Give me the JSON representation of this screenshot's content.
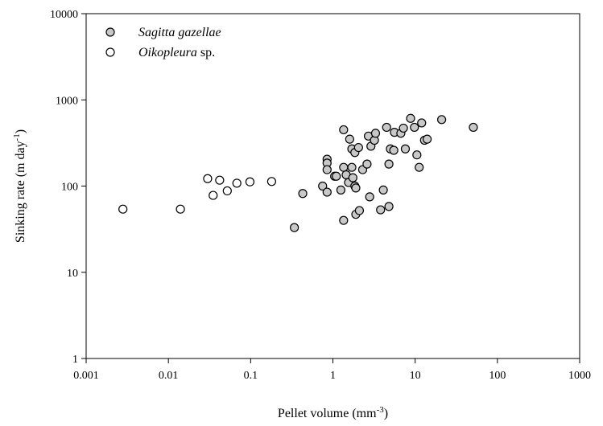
{
  "chart_data": {
    "type": "scatter",
    "title": "",
    "xlabel": "Pellet volume (mm",
    "xlabel_sup": "-3",
    "xlabel_end": ")",
    "ylabel": "Sinking rate (m day",
    "ylabel_sup": "-1",
    "ylabel_end": ")",
    "xscale": "log",
    "yscale": "log",
    "xlim": [
      0.001,
      1000
    ],
    "ylim": [
      1,
      10000
    ],
    "x_ticks": [
      0.001,
      0.01,
      0.1,
      1,
      10,
      100,
      1000
    ],
    "x_tick_labels": [
      "0.001",
      "0.01",
      "0.1",
      "1",
      "10",
      "100",
      "1000"
    ],
    "y_ticks": [
      1,
      10,
      100,
      1000,
      10000
    ],
    "y_tick_labels": [
      "1",
      "10",
      "100",
      "1000",
      "10000"
    ],
    "grid": false,
    "legend_position": "top-left",
    "series": [
      {
        "name": "Sagitta gazellae",
        "name_suffix": "",
        "marker_fill": "#c8c8c8",
        "points": [
          [
            1.35,
            450
          ],
          [
            1.6,
            350
          ],
          [
            1.7,
            270
          ],
          [
            1.85,
            245
          ],
          [
            2.05,
            280
          ],
          [
            2.7,
            380
          ],
          [
            2.9,
            290
          ],
          [
            3.2,
            340
          ],
          [
            3.3,
            410
          ],
          [
            4.5,
            480
          ],
          [
            5.0,
            270
          ],
          [
            5.5,
            260
          ],
          [
            5.6,
            420
          ],
          [
            6.7,
            410
          ],
          [
            7.2,
            470
          ],
          [
            7.6,
            270
          ],
          [
            8.8,
            610
          ],
          [
            9.8,
            480
          ],
          [
            10.5,
            230
          ],
          [
            11.2,
            165
          ],
          [
            12.0,
            540
          ],
          [
            13.0,
            340
          ],
          [
            14.0,
            350
          ],
          [
            21.0,
            590
          ],
          [
            51.0,
            480
          ],
          [
            0.85,
            205
          ],
          [
            0.85,
            185
          ],
          [
            0.85,
            155
          ],
          [
            1.05,
            130
          ],
          [
            1.35,
            165
          ],
          [
            1.45,
            135
          ],
          [
            1.55,
            110
          ],
          [
            1.7,
            165
          ],
          [
            1.75,
            125
          ],
          [
            1.85,
            100
          ],
          [
            1.9,
            95
          ],
          [
            2.3,
            155
          ],
          [
            2.6,
            180
          ],
          [
            4.8,
            180
          ],
          [
            0.75,
            100
          ],
          [
            0.85,
            85
          ],
          [
            1.25,
            90
          ],
          [
            2.8,
            75
          ],
          [
            4.1,
            90
          ],
          [
            1.35,
            40
          ],
          [
            1.9,
            47
          ],
          [
            2.1,
            52
          ],
          [
            3.8,
            53
          ],
          [
            4.8,
            58
          ],
          [
            0.34,
            33
          ],
          [
            0.43,
            82
          ],
          [
            1.1,
            130
          ]
        ]
      },
      {
        "name": "Oikopleura",
        "name_suffix": " sp.",
        "marker_fill": "#ffffff",
        "points": [
          [
            0.0028,
            54
          ],
          [
            0.014,
            54
          ],
          [
            0.03,
            122
          ],
          [
            0.035,
            78
          ],
          [
            0.042,
            117
          ],
          [
            0.052,
            88
          ],
          [
            0.068,
            108
          ],
          [
            0.098,
            112
          ],
          [
            0.18,
            113
          ]
        ]
      }
    ]
  }
}
